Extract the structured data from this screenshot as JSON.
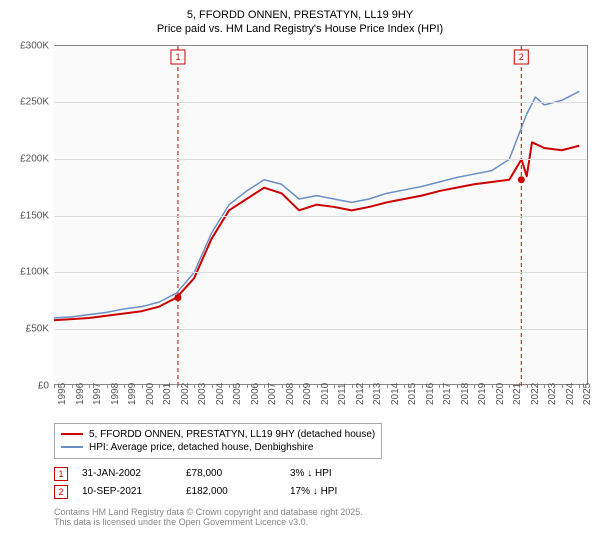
{
  "titles": {
    "line1": "5, FFORDD ONNEN, PRESTATYN, LL19 9HY",
    "line2": "Price paid vs. HM Land Registry's House Price Index (HPI)"
  },
  "chart": {
    "type": "line",
    "background_color": "#fafafa",
    "grid_color": "#dddddd",
    "axis_color": "#888888",
    "xlim": [
      1995,
      2025.5
    ],
    "ylim": [
      0,
      300000
    ],
    "label_fontsize": 10,
    "ytick_step": 50000,
    "yticks": [
      {
        "v": 0,
        "label": "£0"
      },
      {
        "v": 50000,
        "label": "£50K"
      },
      {
        "v": 100000,
        "label": "£100K"
      },
      {
        "v": 150000,
        "label": "£150K"
      },
      {
        "v": 200000,
        "label": "£200K"
      },
      {
        "v": 250000,
        "label": "£250K"
      },
      {
        "v": 300000,
        "label": "£300K"
      }
    ],
    "xticks": [
      "1995",
      "1996",
      "1997",
      "1998",
      "1999",
      "2000",
      "2001",
      "2002",
      "2003",
      "2004",
      "2005",
      "2006",
      "2007",
      "2008",
      "2009",
      "2010",
      "2011",
      "2012",
      "2013",
      "2014",
      "2015",
      "2016",
      "2017",
      "2018",
      "2019",
      "2020",
      "2021",
      "2022",
      "2023",
      "2024",
      "2025"
    ],
    "series": [
      {
        "name": "5, FFORDD ONNEN, PRESTATYN, LL19 9HY (detached house)",
        "color": "#cc0000",
        "line_width": 2,
        "points": [
          [
            1995,
            58000
          ],
          [
            1996,
            59000
          ],
          [
            1997,
            60000
          ],
          [
            1998,
            62000
          ],
          [
            1999,
            64000
          ],
          [
            2000,
            66000
          ],
          [
            2001,
            70000
          ],
          [
            2002,
            78000
          ],
          [
            2003,
            95000
          ],
          [
            2004,
            130000
          ],
          [
            2005,
            155000
          ],
          [
            2006,
            165000
          ],
          [
            2007,
            175000
          ],
          [
            2008,
            170000
          ],
          [
            2009,
            155000
          ],
          [
            2010,
            160000
          ],
          [
            2011,
            158000
          ],
          [
            2012,
            155000
          ],
          [
            2013,
            158000
          ],
          [
            2014,
            162000
          ],
          [
            2015,
            165000
          ],
          [
            2016,
            168000
          ],
          [
            2017,
            172000
          ],
          [
            2018,
            175000
          ],
          [
            2019,
            178000
          ],
          [
            2020,
            180000
          ],
          [
            2021,
            182000
          ],
          [
            2021.7,
            200000
          ],
          [
            2022,
            185000
          ],
          [
            2022.3,
            215000
          ],
          [
            2023,
            210000
          ],
          [
            2024,
            208000
          ],
          [
            2025,
            212000
          ]
        ]
      },
      {
        "name": "HPI: Average price, detached house, Denbighshire",
        "color": "#6a8fc5",
        "line_width": 1.5,
        "points": [
          [
            1995,
            60000
          ],
          [
            1996,
            61000
          ],
          [
            1997,
            63000
          ],
          [
            1998,
            65000
          ],
          [
            1999,
            68000
          ],
          [
            2000,
            70000
          ],
          [
            2001,
            74000
          ],
          [
            2002,
            82000
          ],
          [
            2003,
            100000
          ],
          [
            2004,
            135000
          ],
          [
            2005,
            160000
          ],
          [
            2006,
            172000
          ],
          [
            2007,
            182000
          ],
          [
            2008,
            178000
          ],
          [
            2009,
            165000
          ],
          [
            2010,
            168000
          ],
          [
            2011,
            165000
          ],
          [
            2012,
            162000
          ],
          [
            2013,
            165000
          ],
          [
            2014,
            170000
          ],
          [
            2015,
            173000
          ],
          [
            2016,
            176000
          ],
          [
            2017,
            180000
          ],
          [
            2018,
            184000
          ],
          [
            2019,
            187000
          ],
          [
            2020,
            190000
          ],
          [
            2021,
            200000
          ],
          [
            2022,
            240000
          ],
          [
            2022.5,
            255000
          ],
          [
            2023,
            248000
          ],
          [
            2024,
            252000
          ],
          [
            2025,
            260000
          ]
        ]
      }
    ],
    "markers": [
      {
        "id": "1",
        "x": 2002.08,
        "color": "#cc0000",
        "point_y": 78000
      },
      {
        "id": "2",
        "x": 2021.69,
        "color": "#cc0000",
        "point_y": 182000
      }
    ]
  },
  "legend": {
    "items": [
      {
        "color": "#cc0000",
        "label": "5, FFORDD ONNEN, PRESTATYN, LL19 9HY (detached house)"
      },
      {
        "color": "#6a8fc5",
        "label": "HPI: Average price, detached house, Denbighshire"
      }
    ]
  },
  "marker_table": [
    {
      "id": "1",
      "date": "31-JAN-2002",
      "price": "£78,000",
      "delta": "3% ↓ HPI"
    },
    {
      "id": "2",
      "date": "10-SEP-2021",
      "price": "£182,000",
      "delta": "17% ↓ HPI"
    }
  ],
  "footer": {
    "line1": "Contains HM Land Registry data © Crown copyright and database right 2025.",
    "line2": "This data is licensed under the Open Government Licence v3.0."
  }
}
